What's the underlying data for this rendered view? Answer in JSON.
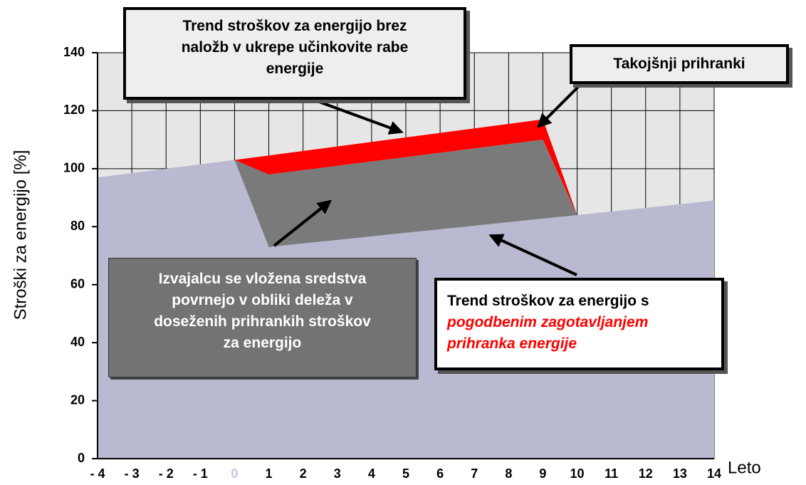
{
  "chart_data": {
    "type": "area",
    "ylabel": "Stroški za energijo [%]",
    "xlabel": "Leto",
    "xlim": [
      -4,
      14
    ],
    "ylim": [
      0,
      140
    ],
    "yticks": [
      0,
      20,
      40,
      60,
      80,
      100,
      120,
      140
    ],
    "xticks": [
      {
        "value": -4,
        "label": "- 4"
      },
      {
        "value": -3,
        "label": "- 3"
      },
      {
        "value": -2,
        "label": "- 2"
      },
      {
        "value": -1,
        "label": "- 1"
      },
      0,
      1,
      2,
      3,
      4,
      5,
      6,
      7,
      8,
      9,
      10,
      11,
      12,
      13,
      14
    ],
    "zero_tick_color": "#c4c4e4",
    "grid": true,
    "background_color": "#e6e6e6",
    "series": [
      {
        "type": "area",
        "color": "#b9b9d1",
        "x": [
          -4,
          0,
          1,
          10,
          14
        ],
        "values": [
          97,
          103,
          73,
          84,
          89
        ]
      },
      {
        "type": "polygon",
        "color": "#ff0000",
        "x": [
          0,
          9,
          10,
          9,
          1
        ],
        "values": [
          103,
          117,
          84,
          110,
          98
        ]
      },
      {
        "type": "polygon",
        "color": "#7a7a7a",
        "x": [
          0,
          1,
          10,
          9,
          1
        ],
        "values": [
          103,
          73,
          84,
          110,
          98
        ]
      }
    ],
    "annotations": [
      {
        "lines": [
          "Trend stroškov za energijo brez",
          "naložb v ukrepe učinkovite rabe",
          "energije"
        ]
      },
      {
        "lines": [
          "Takojšnji prihranki"
        ]
      },
      {
        "lines": [
          "Izvajalcu se vložena sredstva",
          "povrnejo v obliki deleža v",
          "doseženih prihrankih stroškov",
          "za energijo"
        ]
      },
      {
        "lines": [
          "Trend stroškov za energijo s",
          "pogodbenim zagotavljanjem",
          "prihranka energije"
        ]
      }
    ]
  }
}
